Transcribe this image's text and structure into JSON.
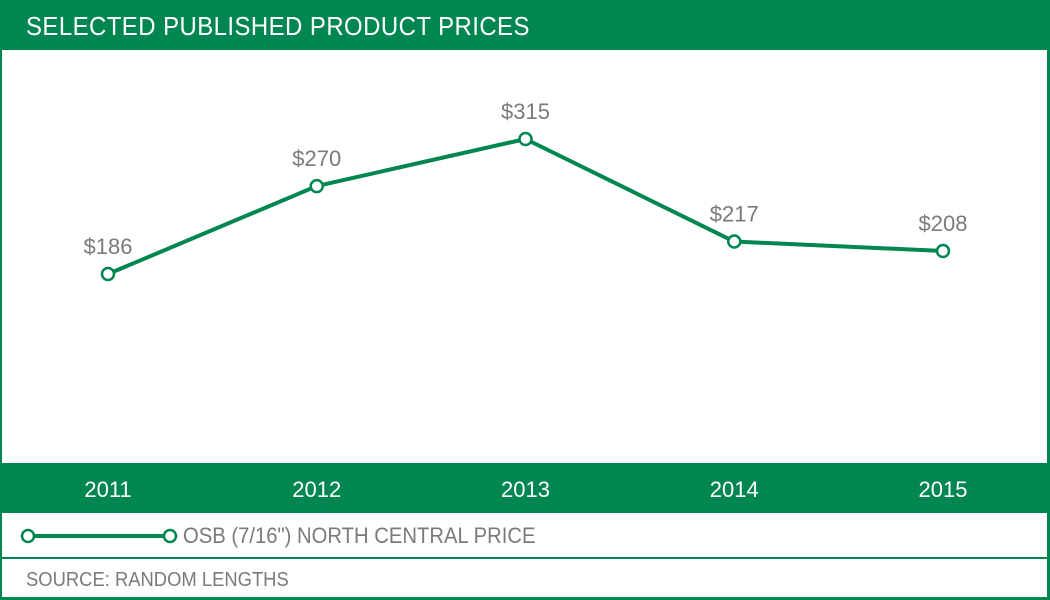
{
  "title": "SELECTED PUBLISHED PRODUCT PRICES",
  "colors": {
    "brand": "#008751",
    "label": "#7a7a7a",
    "marker_fill": "#ffffff"
  },
  "chart_data": {
    "type": "line",
    "title": "SELECTED PUBLISHED PRODUCT PRICES",
    "categories": [
      "2011",
      "2012",
      "2013",
      "2014",
      "2015"
    ],
    "series": [
      {
        "name": "OSB (7/16\") NORTH CENTRAL PRICE",
        "values": [
          186,
          270,
          315,
          217,
          208
        ],
        "labels": [
          "$186",
          "$270",
          "$315",
          "$217",
          "$208"
        ]
      }
    ],
    "xlabel": "",
    "ylabel": "",
    "ylim": [
      0,
      400
    ],
    "grid": false,
    "legend": "bottom"
  },
  "legend": {
    "label": "OSB (7/16\") NORTH CENTRAL PRICE"
  },
  "source": "SOURCE: RANDOM LENGTHS"
}
